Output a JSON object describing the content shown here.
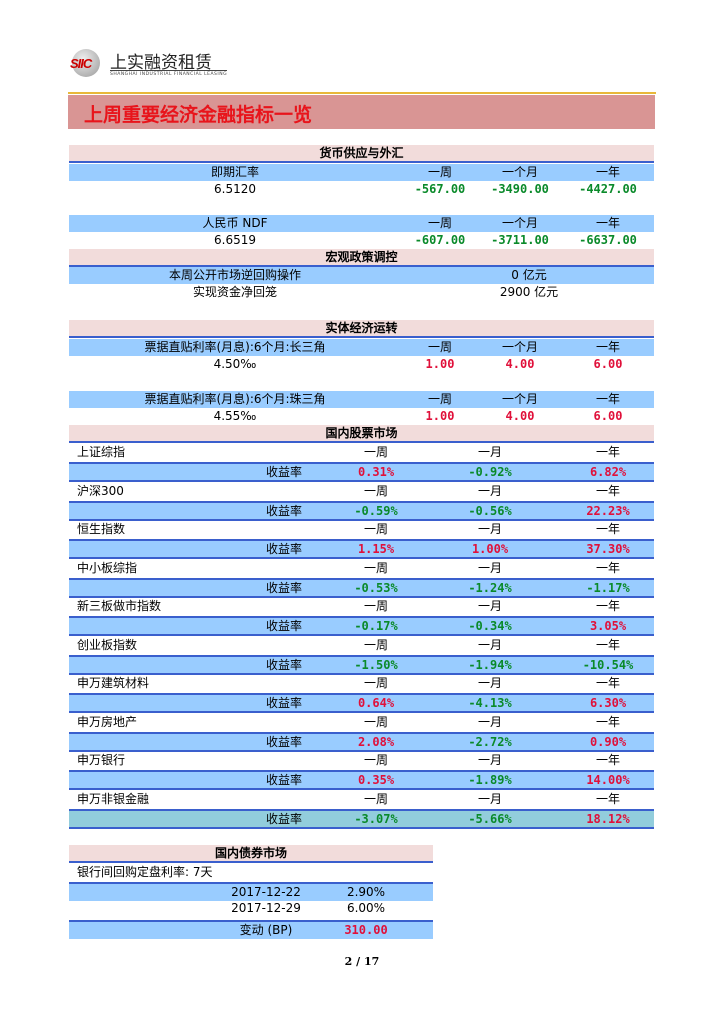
{
  "logo": {
    "mark": "SIIC",
    "name_cn": "上实融资租赁",
    "name_en": "SHANGHAI INDUSTRIAL FINANCIAL LEASING"
  },
  "title": "上周重要经济金融指标一览",
  "colors": {
    "positive": "#e0103a",
    "negative": "#0a8a2a",
    "header_blue": "#99ccff",
    "section_pink": "#f2dcdb",
    "title_band": "#d99594"
  },
  "fx": {
    "section": "货币供应与外汇",
    "blocks": [
      {
        "label": "即期汇率",
        "cols": [
          "一周",
          "一个月",
          "一年"
        ],
        "value": "6.5120",
        "changes": [
          "-567.00",
          "-3490.00",
          "-4427.00"
        ]
      },
      {
        "label": "人民币 NDF",
        "cols": [
          "一周",
          "一个月",
          "一年"
        ],
        "value": "6.6519",
        "changes": [
          "-607.00",
          "-3711.00",
          "-6637.00"
        ]
      }
    ]
  },
  "macro": {
    "section": "宏观政策调控",
    "rows": [
      {
        "label": "本周公开市场逆回购操作",
        "value": "0 亿元"
      },
      {
        "label": "实现资金净回笼",
        "value": "2900 亿元"
      }
    ]
  },
  "real": {
    "section": "实体经济运转",
    "blocks": [
      {
        "label": "票据直贴利率(月息):6个月:长三角",
        "cols": [
          "一周",
          "一个月",
          "一年"
        ],
        "value": "4.50‰",
        "changes": [
          "1.00",
          "4.00",
          "6.00"
        ]
      },
      {
        "label": "票据直贴利率(月息):6个月:珠三角",
        "cols": [
          "一周",
          "一个月",
          "一年"
        ],
        "value": "4.55‰",
        "changes": [
          "1.00",
          "4.00",
          "6.00"
        ]
      }
    ]
  },
  "stocks": {
    "section": "国内股票市场",
    "cols": [
      "一周",
      "一月",
      "一年"
    ],
    "rate_label": "收益率",
    "items": [
      {
        "name": "上证综指",
        "returns": [
          "0.31%",
          "-0.92%",
          "6.82%"
        ]
      },
      {
        "name": "沪深300",
        "returns": [
          "-0.59%",
          "-0.56%",
          "22.23%"
        ]
      },
      {
        "name": "恒生指数",
        "returns": [
          "1.15%",
          "1.00%",
          "37.30%"
        ]
      },
      {
        "name": "中小板综指",
        "returns": [
          "-0.53%",
          "-1.24%",
          "-1.17%"
        ]
      },
      {
        "name": "新三板做市指数",
        "returns": [
          "-0.17%",
          "-0.34%",
          "3.05%"
        ]
      },
      {
        "name": "创业板指数",
        "returns": [
          "-1.50%",
          "-1.94%",
          "-10.54%"
        ]
      },
      {
        "name": "申万建筑材料",
        "returns": [
          "0.64%",
          "-4.13%",
          "6.30%"
        ]
      },
      {
        "name": "申万房地产",
        "returns": [
          "2.08%",
          "-2.72%",
          "0.90%"
        ]
      },
      {
        "name": "申万银行",
        "returns": [
          "0.35%",
          "-1.89%",
          "14.00%"
        ]
      },
      {
        "name": "申万非银金融",
        "returns": [
          "-3.07%",
          "-5.66%",
          "18.12%"
        ]
      }
    ]
  },
  "bonds": {
    "section": "国内债券市场",
    "label": "银行间回购定盘利率: 7天",
    "rows": [
      {
        "date": "2017-12-22",
        "value": "2.90%"
      },
      {
        "date": "2017-12-29",
        "value": "6.00%"
      }
    ],
    "change_label": "变动 (BP)",
    "change_value": "310.00"
  },
  "page": "2 / 17"
}
